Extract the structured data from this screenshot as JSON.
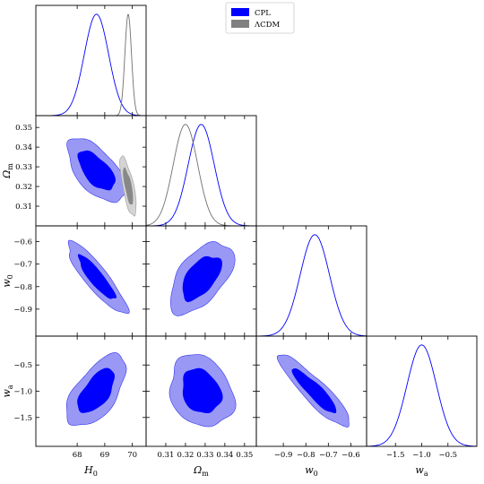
{
  "chart_data": {
    "type": "corner-plot",
    "params": [
      {
        "key": "H0",
        "label_main": "H",
        "label_sub": "0",
        "range": [
          66.5,
          70.5
        ],
        "ticks": [
          68,
          69,
          70
        ],
        "tick_labels": [
          "68",
          "69",
          "70"
        ]
      },
      {
        "key": "Om",
        "label_main": "Ω",
        "label_sub": "m",
        "range": [
          0.3,
          0.356
        ],
        "ticks": [
          0.31,
          0.32,
          0.33,
          0.34,
          0.35
        ],
        "tick_labels": [
          "0.31",
          "0.32",
          "0.33",
          "0.34",
          "0.35"
        ]
      },
      {
        "key": "w0",
        "label_main": "w",
        "label_sub": "0",
        "range": [
          -1.02,
          -0.53
        ],
        "ticks": [
          -0.9,
          -0.8,
          -0.7,
          -0.6
        ],
        "tick_labels": [
          "−0.9",
          "−0.8",
          "−0.7",
          "−0.6"
        ]
      },
      {
        "key": "wa",
        "label_main": "w",
        "label_sub": "a",
        "range": [
          -2.05,
          0.05
        ],
        "ticks": [
          -1.5,
          -1.0,
          -0.5
        ],
        "tick_labels": [
          "−1.5",
          "−1.0",
          "−0.5"
        ]
      }
    ],
    "series": [
      {
        "name": "CPL",
        "color": "#0000ff",
        "mean": {
          "H0": 68.7,
          "Om": 0.328,
          "w0": -0.76,
          "wa": -1.0
        },
        "sigma": {
          "H0": 0.44,
          "Om": 0.0066,
          "w0": 0.065,
          "wa": 0.28
        },
        "corr": {
          "H0_Om": -0.6,
          "H0_w0": -0.88,
          "H0_wa": 0.6,
          "Om_w0": 0.55,
          "Om_wa": -0.2,
          "w0_wa": -0.9
        }
      },
      {
        "name": "ΛCDM",
        "color": "#808080",
        "mean": {
          "H0": 69.85,
          "Om": 0.32
        },
        "sigma": {
          "H0": 0.12,
          "Om": 0.0062
        },
        "corr": {
          "H0_Om": -0.72
        }
      }
    ],
    "legend": {
      "position": "top-center",
      "entries": [
        "CPL",
        "ΛCDM"
      ]
    },
    "grid": false
  }
}
